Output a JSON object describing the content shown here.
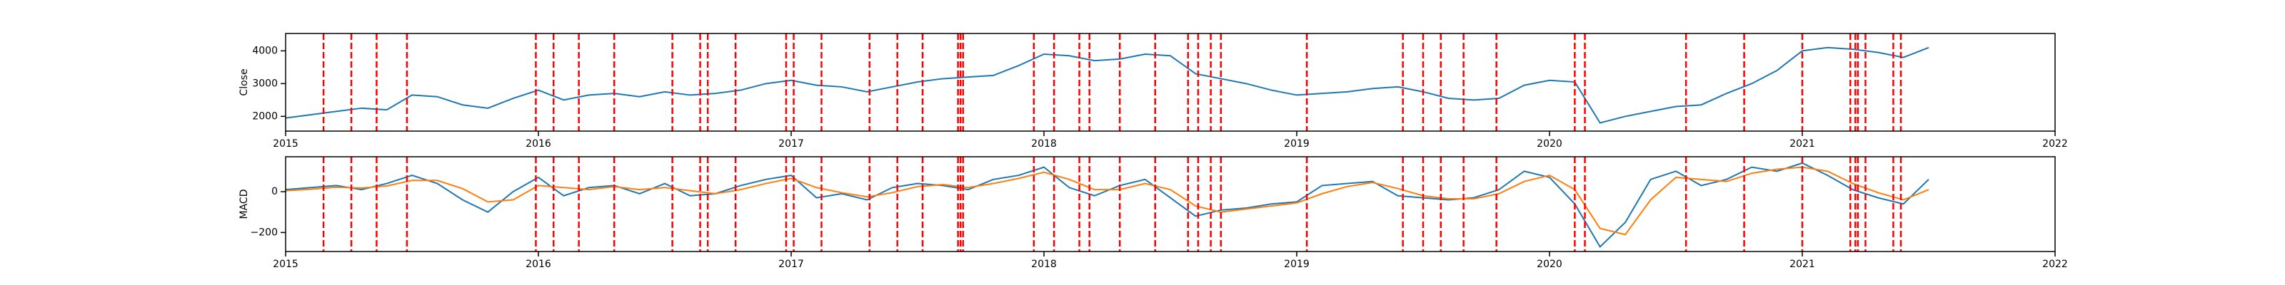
{
  "chart_data": [
    {
      "type": "line",
      "ylabel": "Close",
      "x": [
        2015.0,
        2015.1,
        2015.2,
        2015.3,
        2015.4,
        2015.5,
        2015.6,
        2015.7,
        2015.8,
        2015.9,
        2016.0,
        2016.1,
        2016.2,
        2016.3,
        2016.4,
        2016.5,
        2016.6,
        2016.7,
        2016.8,
        2016.9,
        2017.0,
        2017.1,
        2017.2,
        2017.3,
        2017.4,
        2017.5,
        2017.6,
        2017.7,
        2017.8,
        2017.9,
        2018.0,
        2018.1,
        2018.2,
        2018.3,
        2018.4,
        2018.5,
        2018.6,
        2018.7,
        2018.8,
        2018.9,
        2019.0,
        2019.1,
        2019.2,
        2019.3,
        2019.4,
        2019.5,
        2019.6,
        2019.7,
        2019.8,
        2019.9,
        2020.0,
        2020.1,
        2020.2,
        2020.3,
        2020.4,
        2020.5,
        2020.6,
        2020.7,
        2020.8,
        2020.9,
        2021.0,
        2021.1,
        2021.2,
        2021.3,
        2021.4,
        2021.5
      ],
      "series": [
        {
          "color": "#1f77b4",
          "values": [
            1950,
            2050,
            2150,
            2250,
            2200,
            2650,
            2600,
            2350,
            2250,
            2550,
            2800,
            2500,
            2650,
            2700,
            2600,
            2750,
            2650,
            2700,
            2800,
            3000,
            3100,
            2950,
            2900,
            2750,
            2900,
            3050,
            3150,
            3200,
            3250,
            3550,
            3900,
            3850,
            3700,
            3750,
            3900,
            3850,
            3300,
            3150,
            3000,
            2800,
            2650,
            2700,
            2750,
            2850,
            2900,
            2750,
            2550,
            2500,
            2550,
            2950,
            3100,
            3050,
            1800,
            2000,
            2150,
            2300,
            2350,
            2700,
            3000,
            3400,
            4000,
            4100,
            4050,
            3950,
            3800,
            4100
          ]
        }
      ],
      "vlines": [
        2015.15,
        2015.26,
        2015.36,
        2015.48,
        2015.99,
        2016.06,
        2016.16,
        2016.3,
        2016.53,
        2016.64,
        2016.67,
        2016.78,
        2016.98,
        2017.01,
        2017.12,
        2017.31,
        2017.42,
        2017.52,
        2017.66,
        2017.67,
        2017.68,
        2017.96,
        2018.04,
        2018.14,
        2018.18,
        2018.3,
        2018.44,
        2018.57,
        2018.61,
        2018.66,
        2018.7,
        2019.04,
        2019.42,
        2019.5,
        2019.57,
        2019.66,
        2019.79,
        2020.1,
        2020.14,
        2020.54,
        2020.77,
        2021.0,
        2021.19,
        2021.21,
        2021.22,
        2021.25,
        2021.36,
        2021.39
      ],
      "vline_color": "#ff0000",
      "xlim": [
        2015,
        2022
      ],
      "xticks": [
        2015,
        2016,
        2017,
        2018,
        2019,
        2020,
        2021,
        2022
      ],
      "ylim": [
        1550,
        4530
      ],
      "yticks": [
        2000,
        3000,
        4000
      ]
    },
    {
      "type": "line",
      "ylabel": "MACD",
      "x": [
        2015.0,
        2015.1,
        2015.2,
        2015.3,
        2015.4,
        2015.5,
        2015.6,
        2015.7,
        2015.8,
        2015.9,
        2016.0,
        2016.1,
        2016.2,
        2016.3,
        2016.4,
        2016.5,
        2016.6,
        2016.7,
        2016.8,
        2016.9,
        2017.0,
        2017.1,
        2017.2,
        2017.3,
        2017.4,
        2017.5,
        2017.6,
        2017.7,
        2017.8,
        2017.9,
        2018.0,
        2018.1,
        2018.2,
        2018.3,
        2018.4,
        2018.5,
        2018.6,
        2018.7,
        2018.8,
        2018.9,
        2019.0,
        2019.1,
        2019.2,
        2019.3,
        2019.4,
        2019.5,
        2019.6,
        2019.7,
        2019.8,
        2019.9,
        2020.0,
        2020.1,
        2020.2,
        2020.3,
        2020.4,
        2020.5,
        2020.6,
        2020.7,
        2020.8,
        2020.9,
        2021.0,
        2021.1,
        2021.2,
        2021.3,
        2021.4,
        2021.5
      ],
      "series": [
        {
          "color": "#1f77b4",
          "values": [
            10,
            20,
            30,
            10,
            40,
            80,
            40,
            -40,
            -100,
            0,
            70,
            -20,
            20,
            30,
            -10,
            40,
            -20,
            -10,
            30,
            60,
            80,
            -30,
            -10,
            -40,
            20,
            40,
            30,
            10,
            60,
            80,
            120,
            20,
            -20,
            30,
            60,
            -30,
            -120,
            -90,
            -80,
            -60,
            -50,
            30,
            40,
            50,
            -20,
            -30,
            -40,
            -30,
            10,
            100,
            70,
            -60,
            -270,
            -150,
            60,
            100,
            30,
            60,
            120,
            100,
            140,
            80,
            10,
            -30,
            -60,
            60
          ]
        },
        {
          "color": "#ff7f0e",
          "values": [
            5,
            12,
            22,
            18,
            28,
            55,
            55,
            15,
            -50,
            -40,
            30,
            20,
            10,
            25,
            10,
            20,
            5,
            -10,
            10,
            40,
            65,
            20,
            -5,
            -25,
            -5,
            25,
            35,
            20,
            40,
            65,
            95,
            60,
            10,
            10,
            40,
            10,
            -70,
            -100,
            -85,
            -70,
            -55,
            -10,
            25,
            45,
            15,
            -20,
            -35,
            -35,
            -10,
            50,
            80,
            10,
            -180,
            -210,
            -40,
            70,
            60,
            50,
            90,
            110,
            120,
            100,
            40,
            -5,
            -40,
            10
          ]
        }
      ],
      "vlines": [
        2015.15,
        2015.26,
        2015.36,
        2015.48,
        2015.99,
        2016.06,
        2016.16,
        2016.3,
        2016.53,
        2016.64,
        2016.67,
        2016.78,
        2016.98,
        2017.01,
        2017.12,
        2017.31,
        2017.42,
        2017.52,
        2017.66,
        2017.67,
        2017.68,
        2017.96,
        2018.04,
        2018.14,
        2018.18,
        2018.3,
        2018.44,
        2018.57,
        2018.61,
        2018.66,
        2018.7,
        2019.04,
        2019.42,
        2019.5,
        2019.57,
        2019.66,
        2019.79,
        2020.1,
        2020.14,
        2020.54,
        2020.77,
        2021.0,
        2021.19,
        2021.21,
        2021.22,
        2021.25,
        2021.36,
        2021.39
      ],
      "vline_color": "#ff0000",
      "xlim": [
        2015,
        2022
      ],
      "xticks": [
        2015,
        2016,
        2017,
        2018,
        2019,
        2020,
        2021,
        2022
      ],
      "ylim": [
        -293,
        171
      ],
      "yticks": [
        {
          "value": -200,
          "label": "−200"
        },
        0
      ]
    }
  ]
}
